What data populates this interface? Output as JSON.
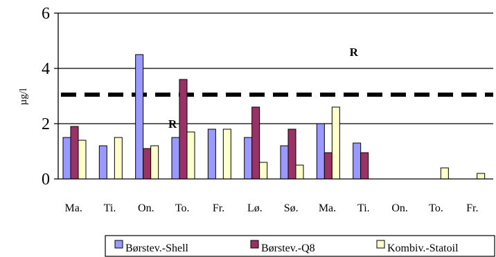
{
  "chart_data": {
    "type": "bar",
    "ylabel": "µg/l",
    "ylim": [
      0,
      6
    ],
    "yticks": [
      0,
      2,
      4,
      6
    ],
    "grid": "horizontal",
    "categories": [
      "Ma.",
      "Ti.",
      "On.",
      "To.",
      "Fr.",
      "Lø.",
      "Sø.",
      "Ma.",
      "Ti.",
      "On.",
      "To.",
      "Fr."
    ],
    "series": [
      {
        "name": "Børstev.-Shell",
        "color": "#9999ff",
        "values": [
          1.5,
          1.2,
          4.5,
          1.5,
          1.8,
          1.5,
          1.2,
          2.0,
          1.3,
          0,
          0,
          0
        ]
      },
      {
        "name": "Børstev.-Q8",
        "color": "#993366",
        "values": [
          1.9,
          0,
          1.1,
          3.6,
          0,
          2.6,
          1.8,
          0.95,
          0.95,
          0,
          0,
          0
        ]
      },
      {
        "name": "Kombiv.-Statoil",
        "color": "#ffffcc",
        "values": [
          1.4,
          1.5,
          1.2,
          1.7,
          1.8,
          0.6,
          0.5,
          2.6,
          0,
          0,
          0.4,
          0.2
        ]
      }
    ],
    "reference_line": {
      "value": 3.05,
      "style": "dashed"
    },
    "annotations": [
      {
        "text": "R",
        "x_category_index": 8,
        "y": 4.6
      },
      {
        "text": "R",
        "x_category_index": 3,
        "y": 2.0
      }
    ],
    "legend": {
      "position": "bottom"
    }
  }
}
